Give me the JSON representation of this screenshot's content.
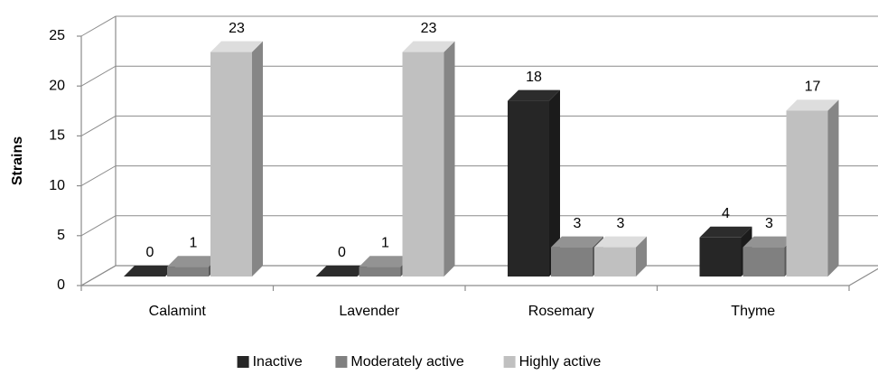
{
  "chart_data": {
    "type": "bar3d",
    "y_label": "Strains",
    "categories": [
      "Calamint",
      "Lavender",
      "Rosemary",
      "Thyme"
    ],
    "series": [
      {
        "name": "Inactive",
        "color": "#262626",
        "values": [
          0,
          0,
          18,
          4
        ]
      },
      {
        "name": "Moderately active",
        "color": "#808080",
        "values": [
          1,
          1,
          3,
          3
        ]
      },
      {
        "name": "Highly active",
        "color": "#c0c0c0",
        "values": [
          23,
          23,
          3,
          17
        ]
      }
    ],
    "ylim": [
      0,
      25
    ],
    "yticks": [
      0,
      5,
      10,
      15,
      20,
      25
    ],
    "grid": true,
    "legend": "bottom"
  }
}
